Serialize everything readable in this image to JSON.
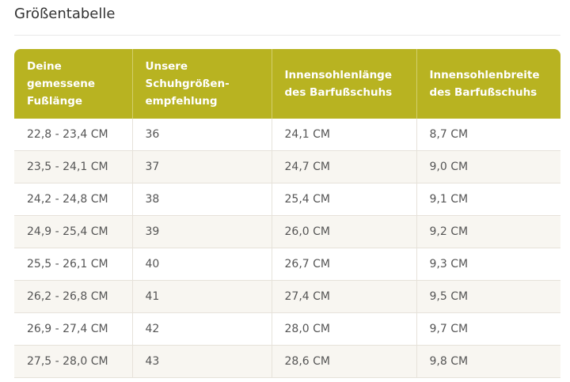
{
  "title": "Größentabelle",
  "table": {
    "header": [
      [
        "Deine",
        "gemessene",
        "Fußlänge"
      ],
      [
        "Unsere",
        "Schuhgrößen-",
        "empfehlung"
      ],
      [
        "Innensohlenlänge",
        "des Barfußschuhs"
      ],
      [
        "Innensohlenbreite",
        "des Barfußschuhs"
      ]
    ],
    "rows": [
      [
        "22,8 - 23,4 CM",
        "36",
        "24,1 CM",
        "8,7 CM"
      ],
      [
        "23,5 - 24,1 CM",
        "37",
        "24,7 CM",
        "9,0 CM"
      ],
      [
        "24,2 - 24,8 CM",
        "38",
        "25,4 CM",
        "9,1 CM"
      ],
      [
        "24,9 - 25,4 CM",
        "39",
        "26,0 CM",
        "9,2 CM"
      ],
      [
        "25,5 - 26,1 CM",
        "40",
        "26,7 CM",
        "9,3 CM"
      ],
      [
        "26,2 - 26,8 CM",
        "41",
        "27,4 CM",
        "9,5 CM"
      ],
      [
        "26,9 - 27,4 CM",
        "42",
        "28,0 CM",
        "9,7 CM"
      ],
      [
        "27,5 - 28,0 CM",
        "43",
        "28,6 CM",
        "9,8 CM"
      ]
    ]
  }
}
